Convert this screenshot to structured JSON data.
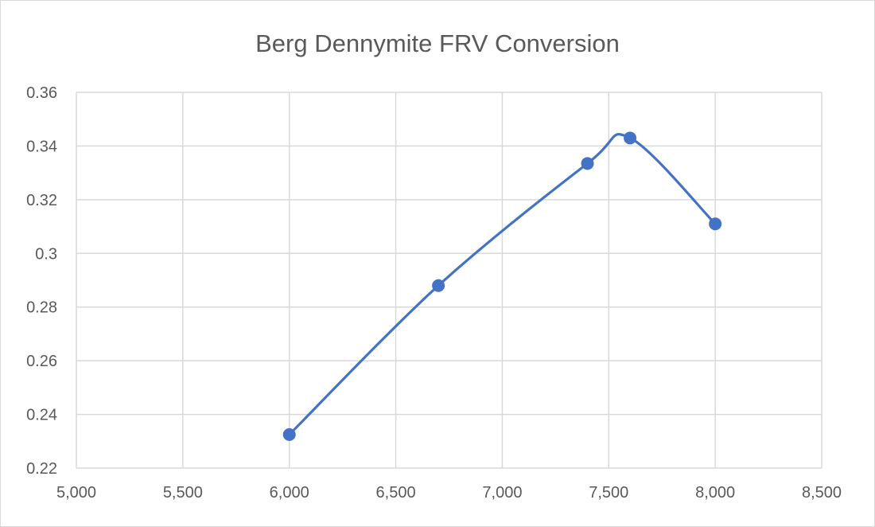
{
  "chart_data": {
    "type": "scatter",
    "title": "Berg Dennymite FRV Conversion",
    "xlabel": "",
    "ylabel": "",
    "xlim": [
      5000,
      8500
    ],
    "ylim": [
      0.22,
      0.36
    ],
    "x_ticks": [
      "5,000",
      "5,500",
      "6,000",
      "6,500",
      "7,000",
      "7,500",
      "8,000",
      "8,500"
    ],
    "x_tick_values": [
      5000,
      5500,
      6000,
      6500,
      7000,
      7500,
      8000,
      8500
    ],
    "y_ticks": [
      "0.22",
      "0.24",
      "0.26",
      "0.28",
      "0.3",
      "0.32",
      "0.34",
      "0.36"
    ],
    "y_tick_values": [
      0.22,
      0.24,
      0.26,
      0.28,
      0.3,
      0.32,
      0.34,
      0.36
    ],
    "grid": true,
    "smoothed_line": true,
    "legend": "none",
    "series": [
      {
        "color": "#4472c4",
        "x": [
          6000,
          6700,
          7400,
          7600,
          8000
        ],
        "y": [
          0.2325,
          0.288,
          0.3335,
          0.343,
          0.311
        ]
      }
    ]
  }
}
